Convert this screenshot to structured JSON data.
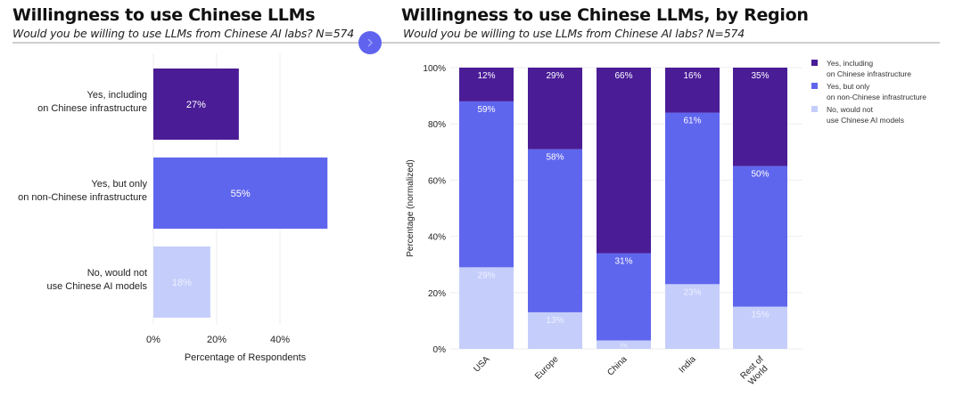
{
  "left_panel": {
    "title": "Willingness to use Chinese LLMs",
    "subtitle": "Would you be willing to use LLMs from Chinese AI labs? N=574"
  },
  "right_panel": {
    "title": "Willingness to use Chinese LLMs, by Region",
    "subtitle": "Would you be willing to use LLMs from Chinese AI labs? N=574"
  },
  "nav": {
    "icon": "chevron-right-icon"
  },
  "colors": {
    "yes_including": "#4a1c96",
    "yes_only_non_chinese": "#5f66ee",
    "no": "#c5cefb",
    "grid": "#eeeeee"
  },
  "chart_data": [
    {
      "type": "bar",
      "orientation": "horizontal",
      "title": "Willingness to use Chinese LLMs",
      "categories": [
        [
          "Yes, including",
          "on Chinese infrastructure"
        ],
        [
          "Yes, but only",
          "on non-Chinese infrastructure"
        ],
        [
          "No, would not",
          "use Chinese AI models"
        ]
      ],
      "values": [
        27,
        55,
        18
      ],
      "data_labels": [
        "27%",
        "55%",
        "18%"
      ],
      "xlabel": "Percentage of Respondents",
      "ylabel": "",
      "xlim": [
        0,
        55
      ],
      "xticks": [
        0,
        20,
        40
      ],
      "xtick_labels": [
        "0%",
        "20%",
        "40%"
      ],
      "grid": true
    },
    {
      "type": "bar",
      "orientation": "vertical",
      "stacked": true,
      "title": "Willingness to use Chinese LLMs, by Region",
      "categories": [
        "USA",
        "Europe",
        "China",
        "India",
        "Rest of\nWorld"
      ],
      "series": [
        {
          "name": "No, would not\nuse Chinese AI models",
          "key": "no",
          "values": [
            29,
            13,
            3,
            23,
            15
          ],
          "labels": [
            "29%",
            "13%",
            "3%",
            "23%",
            "15%"
          ]
        },
        {
          "name": "Yes, but only\non non-Chinese infrastructure",
          "key": "yes_only_non_chinese",
          "values": [
            59,
            58,
            31,
            61,
            50
          ],
          "labels": [
            "59%",
            "58%",
            "31%",
            "61%",
            "50%"
          ]
        },
        {
          "name": "Yes, including\non Chinese infrastructure",
          "key": "yes_including",
          "values": [
            12,
            29,
            66,
            16,
            35
          ],
          "labels": [
            "12%",
            "29%",
            "66%",
            "16%",
            "35%"
          ]
        }
      ],
      "legend_order": [
        "yes_including",
        "yes_only_non_chinese",
        "no"
      ],
      "legend_position": "right",
      "xlabel": "",
      "ylabel": "Percentage (normalized)",
      "ylim": [
        0,
        100
      ],
      "yticks": [
        0,
        20,
        40,
        60,
        80,
        100
      ],
      "ytick_labels": [
        "0%",
        "20%",
        "40%",
        "60%",
        "80%",
        "100%"
      ],
      "grid": true
    }
  ]
}
